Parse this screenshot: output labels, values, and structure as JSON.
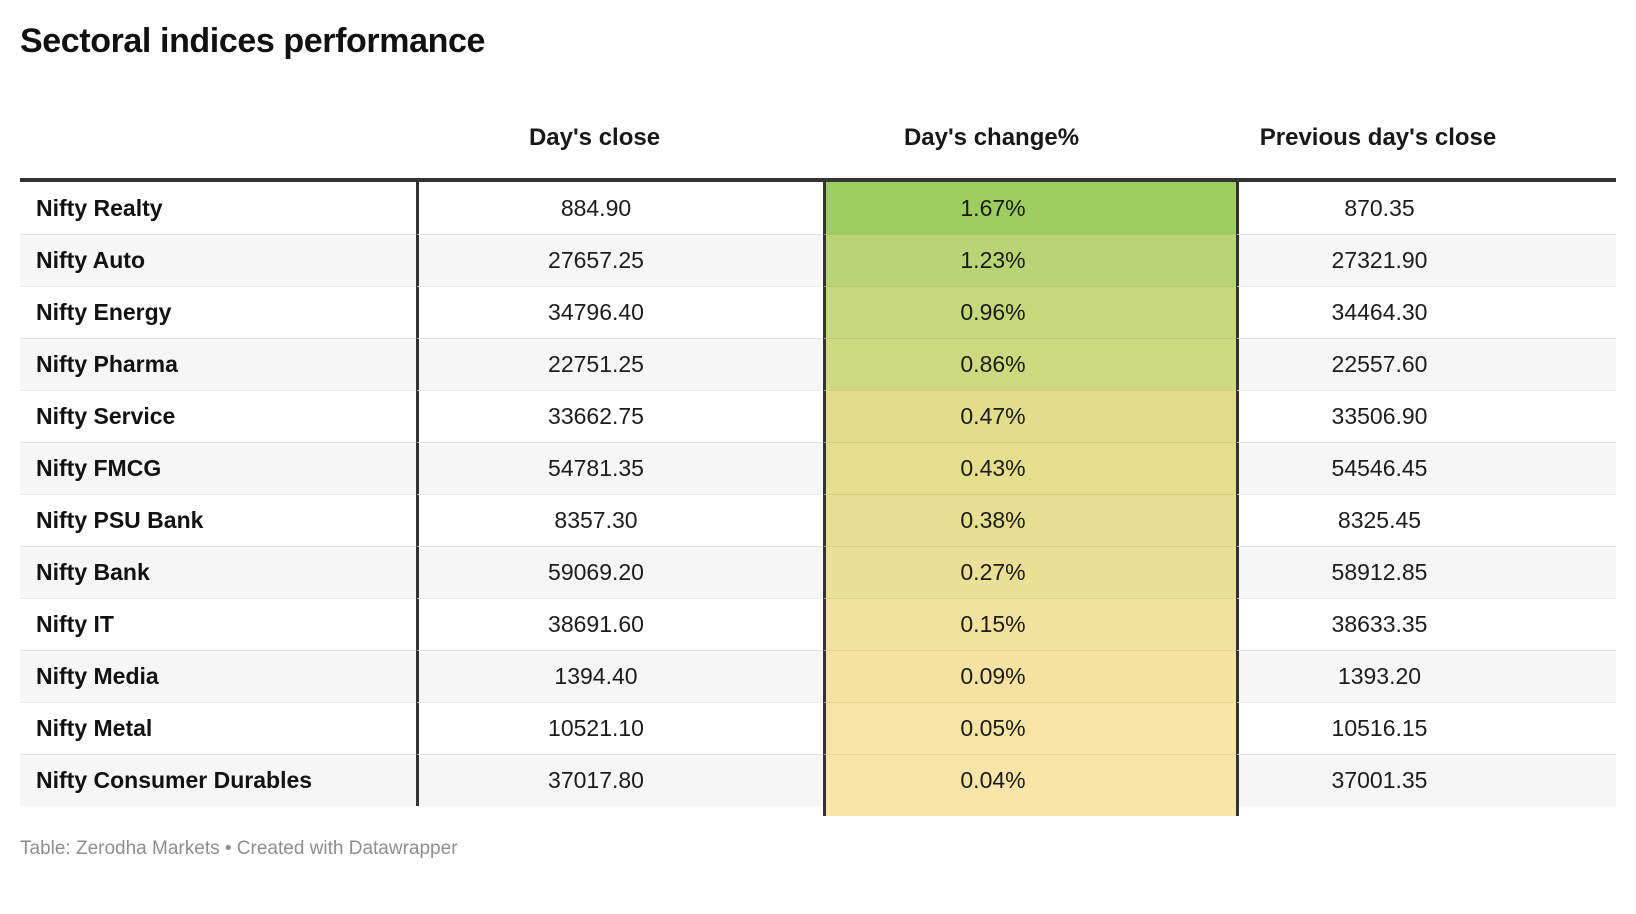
{
  "title": "Sectoral indices performance",
  "table": {
    "columns": [
      "",
      "Day's close",
      "Day's change%",
      "Previous day's close"
    ],
    "rows": [
      {
        "name": "Nifty Realty",
        "close": "884.90",
        "change": "1.67%",
        "prev": "870.35",
        "change_bg": "#9ecd62"
      },
      {
        "name": "Nifty Auto",
        "close": "27657.25",
        "change": "1.23%",
        "prev": "27321.90",
        "change_bg": "#b9d474"
      },
      {
        "name": "Nifty Energy",
        "close": "34796.40",
        "change": "0.96%",
        "prev": "34464.30",
        "change_bg": "#c6d87a"
      },
      {
        "name": "Nifty Pharma",
        "close": "22751.25",
        "change": "0.86%",
        "prev": "22557.60",
        "change_bg": "#cdda7f"
      },
      {
        "name": "Nifty Service",
        "close": "33662.75",
        "change": "0.47%",
        "prev": "33506.90",
        "change_bg": "#e2dd8a"
      },
      {
        "name": "Nifty FMCG",
        "close": "54781.35",
        "change": "0.43%",
        "prev": "54546.45",
        "change_bg": "#e4de8d"
      },
      {
        "name": "Nifty PSU Bank",
        "close": "8357.30",
        "change": "0.38%",
        "prev": "8325.45",
        "change_bg": "#e6df90"
      },
      {
        "name": "Nifty Bank",
        "close": "59069.20",
        "change": "0.27%",
        "prev": "58912.85",
        "change_bg": "#eae095"
      },
      {
        "name": "Nifty IT",
        "close": "38691.60",
        "change": "0.15%",
        "prev": "38633.35",
        "change_bg": "#f3e29d"
      },
      {
        "name": "Nifty Media",
        "close": "1394.40",
        "change": "0.09%",
        "prev": "1393.20",
        "change_bg": "#f6e3a1"
      },
      {
        "name": "Nifty Metal",
        "close": "10521.10",
        "change": "0.05%",
        "prev": "10516.15",
        "change_bg": "#f8e4a5"
      },
      {
        "name": "Nifty Consumer Durables",
        "close": "37017.80",
        "change": "0.04%",
        "prev": "37001.35",
        "change_bg": "#fae5a8"
      }
    ]
  },
  "footer": {
    "attribution": "Table: Zerodha Markets • Created with Datawrapper"
  },
  "colors": {
    "border_dark": "#333333",
    "row_alt_bg": "#f6f6f6",
    "footer_text": "#8e8e8e",
    "heatmap_max_green": "#9ecd62",
    "heatmap_min_yellow": "#fae5a8"
  },
  "chart_data": {
    "type": "table",
    "title": "Sectoral indices performance",
    "columns": [
      "",
      "Day's close",
      "Day's change%",
      "Previous day's close"
    ],
    "rows": [
      [
        "Nifty Realty",
        884.9,
        1.67,
        870.35
      ],
      [
        "Nifty Auto",
        27657.25,
        1.23,
        27321.9
      ],
      [
        "Nifty Energy",
        34796.4,
        0.96,
        34464.3
      ],
      [
        "Nifty Pharma",
        22751.25,
        0.86,
        22557.6
      ],
      [
        "Nifty Service",
        33662.75,
        0.47,
        33506.9
      ],
      [
        "Nifty FMCG",
        54781.35,
        0.43,
        54546.45
      ],
      [
        "Nifty PSU Bank",
        8357.3,
        0.38,
        8325.45
      ],
      [
        "Nifty Bank",
        59069.2,
        0.27,
        58912.85
      ],
      [
        "Nifty IT",
        38691.6,
        0.15,
        38633.35
      ],
      [
        "Nifty Media",
        1394.4,
        0.09,
        1393.2
      ],
      [
        "Nifty Metal",
        10521.1,
        0.05,
        10516.15
      ],
      [
        "Nifty Consumer Durables",
        37017.8,
        0.04,
        37001.35
      ]
    ],
    "heatmap_column": "Day's change%",
    "heatmap_value_range": [
      0.04,
      1.67
    ],
    "heatmap_color_scale": [
      "#fae5a8",
      "#9ecd62"
    ],
    "sort": "Day's change% descending",
    "source": "Table: Zerodha Markets • Created with Datawrapper"
  }
}
